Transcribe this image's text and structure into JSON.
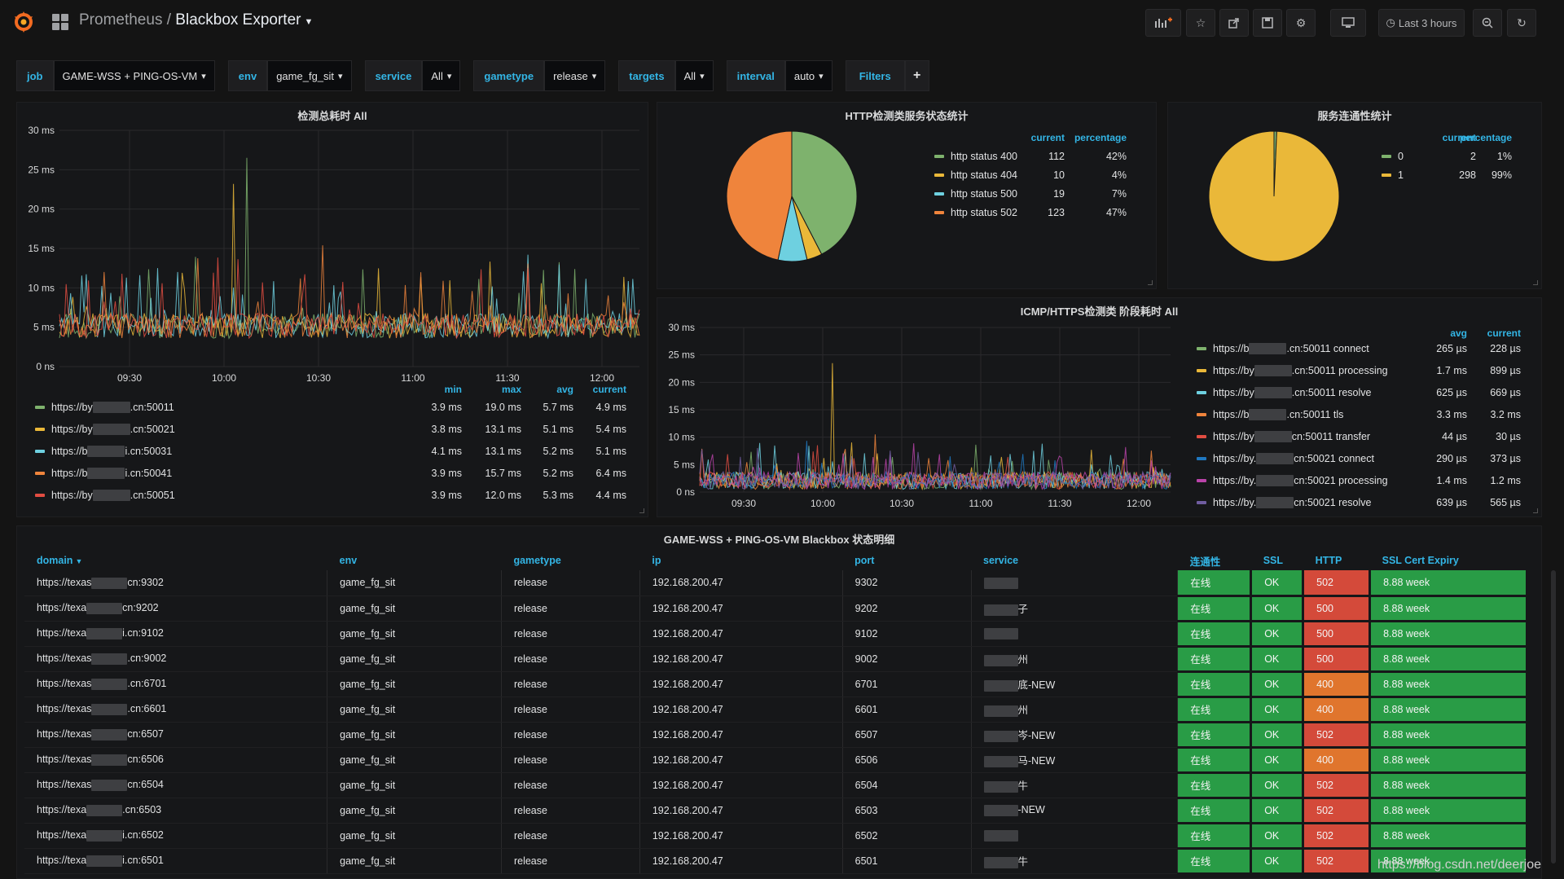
{
  "topbar": {
    "app": "Prometheus",
    "separator": "/",
    "dashboard": "Blackbox Exporter",
    "time_range": "Last 3 hours"
  },
  "variables": [
    {
      "label": "job",
      "value": "GAME-WSS + PING-OS-VM"
    },
    {
      "label": "env",
      "value": "game_fg_sit"
    },
    {
      "label": "service",
      "value": "All"
    },
    {
      "label": "gametype",
      "value": "release"
    },
    {
      "label": "targets",
      "value": "All"
    },
    {
      "label": "interval",
      "value": "auto"
    }
  ],
  "filters_label": "Filters",
  "panel1": {
    "title": "检测总耗时 All",
    "yticks": [
      "30 ms",
      "25 ms",
      "20 ms",
      "15 ms",
      "10 ms",
      "5 ms",
      "0 ns"
    ],
    "xticks": [
      "09:30",
      "10:00",
      "10:30",
      "11:00",
      "11:30",
      "12:00"
    ],
    "headers": [
      "min",
      "max",
      "avg",
      "current"
    ],
    "rows": [
      {
        "pre": "https://by",
        "post": ".cn:50011",
        "color": "#7eb26d",
        "min": "3.9 ms",
        "max": "19.0 ms",
        "avg": "5.7 ms",
        "current": "4.9 ms"
      },
      {
        "pre": "https://by",
        "post": ".cn:50021",
        "color": "#eab839",
        "min": "3.8 ms",
        "max": "13.1 ms",
        "avg": "5.1 ms",
        "current": "5.4 ms"
      },
      {
        "pre": "https://b",
        "post": "i.cn:50031",
        "color": "#6ed0e0",
        "min": "4.1 ms",
        "max": "13.1 ms",
        "avg": "5.2 ms",
        "current": "5.1 ms"
      },
      {
        "pre": "https://b",
        "post": "i.cn:50041",
        "color": "#ef843c",
        "min": "3.9 ms",
        "max": "15.7 ms",
        "avg": "5.2 ms",
        "current": "6.4 ms"
      },
      {
        "pre": "https://by",
        "post": ".cn:50051",
        "color": "#e24d42",
        "min": "3.9 ms",
        "max": "12.0 ms",
        "avg": "5.3 ms",
        "current": "4.4 ms"
      }
    ]
  },
  "panel2": {
    "title": "HTTP检测类服务状态统计",
    "headers": [
      "current",
      "percentage"
    ],
    "rows": [
      {
        "name": "http status 400",
        "color": "#7eb26d",
        "current": "112",
        "percentage": "42%"
      },
      {
        "name": "http status 404",
        "color": "#eab839",
        "current": "10",
        "percentage": "4%"
      },
      {
        "name": "http status 500",
        "color": "#6ed0e0",
        "current": "19",
        "percentage": "7%"
      },
      {
        "name": "http status 502",
        "color": "#ef843c",
        "current": "123",
        "percentage": "47%"
      }
    ]
  },
  "panel3": {
    "title": "服务连通性统计",
    "headers": [
      "current",
      "percentage"
    ],
    "rows": [
      {
        "name": "0",
        "color": "#7eb26d",
        "current": "2",
        "percentage": "1%"
      },
      {
        "name": "1",
        "color": "#eab839",
        "current": "298",
        "percentage": "99%"
      }
    ]
  },
  "panel4": {
    "title": "ICMP/HTTPS检测类 阶段耗时 All",
    "yticks": [
      "30 ms",
      "25 ms",
      "20 ms",
      "15 ms",
      "10 ms",
      "5 ms",
      "0 ns"
    ],
    "xticks": [
      "09:30",
      "10:00",
      "10:30",
      "11:00",
      "11:30",
      "12:00"
    ],
    "headers": [
      "avg",
      "current"
    ],
    "rows": [
      {
        "pre": "https://b",
        "post": ".cn:50011 connect",
        "color": "#7eb26d",
        "avg": "265 µs",
        "current": "228 µs"
      },
      {
        "pre": "https://by",
        "post": ".cn:50011 processing",
        "color": "#eab839",
        "avg": "1.7 ms",
        "current": "899 µs"
      },
      {
        "pre": "https://by",
        "post": ".cn:50011 resolve",
        "color": "#6ed0e0",
        "avg": "625 µs",
        "current": "669 µs"
      },
      {
        "pre": "https://b",
        "post": ".cn:50011 tls",
        "color": "#ef843c",
        "avg": "3.3 ms",
        "current": "3.2 ms"
      },
      {
        "pre": "https://by",
        "post": "cn:50011 transfer",
        "color": "#e24d42",
        "avg": "44 µs",
        "current": "30 µs"
      },
      {
        "pre": "https://by.",
        "post": "cn:50021 connect",
        "color": "#1f78c1",
        "avg": "290 µs",
        "current": "373 µs"
      },
      {
        "pre": "https://by.",
        "post": "cn:50021 processing",
        "color": "#ba43a9",
        "avg": "1.4 ms",
        "current": "1.2 ms"
      },
      {
        "pre": "https://by.",
        "post": "cn:50021 resolve",
        "color": "#705da0",
        "avg": "639 µs",
        "current": "565 µs"
      }
    ]
  },
  "table": {
    "title": "GAME-WSS + PING-OS-VM Blackbox 状态明细",
    "headers": [
      "domain",
      "env",
      "gametype",
      "ip",
      "port",
      "service",
      "连通性",
      "SSL",
      "HTTP",
      "SSL Cert Expiry"
    ],
    "rows": [
      {
        "d1": "https://texas",
        "d2": "cn:9302",
        "env": "game_fg_sit",
        "gametype": "release",
        "ip": "192.168.200.47",
        "port": "9302",
        "svc": "",
        "conn": "在线",
        "ssl": "OK",
        "http": "502",
        "expiry": "8.88 week"
      },
      {
        "d1": "https://texa",
        "d2": "cn:9202",
        "env": "game_fg_sit",
        "gametype": "release",
        "ip": "192.168.200.47",
        "port": "9202",
        "svc": "子",
        "conn": "在线",
        "ssl": "OK",
        "http": "500",
        "expiry": "8.88 week"
      },
      {
        "d1": "https://texa",
        "d2": "i.cn:9102",
        "env": "game_fg_sit",
        "gametype": "release",
        "ip": "192.168.200.47",
        "port": "9102",
        "svc": "",
        "conn": "在线",
        "ssl": "OK",
        "http": "500",
        "expiry": "8.88 week"
      },
      {
        "d1": "https://texas",
        "d2": ".cn:9002",
        "env": "game_fg_sit",
        "gametype": "release",
        "ip": "192.168.200.47",
        "port": "9002",
        "svc": "州",
        "conn": "在线",
        "ssl": "OK",
        "http": "500",
        "expiry": "8.88 week"
      },
      {
        "d1": "https://texas",
        "d2": ".cn:6701",
        "env": "game_fg_sit",
        "gametype": "release",
        "ip": "192.168.200.47",
        "port": "6701",
        "svc": "底-NEW",
        "conn": "在线",
        "ssl": "OK",
        "http": "400",
        "expiry": "8.88 week"
      },
      {
        "d1": "https://texas",
        "d2": ".cn:6601",
        "env": "game_fg_sit",
        "gametype": "release",
        "ip": "192.168.200.47",
        "port": "6601",
        "svc": "州",
        "conn": "在线",
        "ssl": "OK",
        "http": "400",
        "expiry": "8.88 week"
      },
      {
        "d1": "https://texas",
        "d2": "cn:6507",
        "env": "game_fg_sit",
        "gametype": "release",
        "ip": "192.168.200.47",
        "port": "6507",
        "svc": "岑-NEW",
        "conn": "在线",
        "ssl": "OK",
        "http": "502",
        "expiry": "8.88 week"
      },
      {
        "d1": "https://texas",
        "d2": "cn:6506",
        "env": "game_fg_sit",
        "gametype": "release",
        "ip": "192.168.200.47",
        "port": "6506",
        "svc": "马-NEW",
        "conn": "在线",
        "ssl": "OK",
        "http": "400",
        "expiry": "8.88 week"
      },
      {
        "d1": "https://texas",
        "d2": "cn:6504",
        "env": "game_fg_sit",
        "gametype": "release",
        "ip": "192.168.200.47",
        "port": "6504",
        "svc": "牛",
        "conn": "在线",
        "ssl": "OK",
        "http": "502",
        "expiry": "8.88 week"
      },
      {
        "d1": "https://texa",
        "d2": ".cn:6503",
        "env": "game_fg_sit",
        "gametype": "release",
        "ip": "192.168.200.47",
        "port": "6503",
        "svc": "-NEW",
        "conn": "在线",
        "ssl": "OK",
        "http": "502",
        "expiry": "8.88 week"
      },
      {
        "d1": "https://texa",
        "d2": "i.cn:6502",
        "env": "game_fg_sit",
        "gametype": "release",
        "ip": "192.168.200.47",
        "port": "6502",
        "svc": "",
        "conn": "在线",
        "ssl": "OK",
        "http": "502",
        "expiry": "8.88 week"
      },
      {
        "d1": "https://texa",
        "d2": "i.cn:6501",
        "env": "game_fg_sit",
        "gametype": "release",
        "ip": "192.168.200.47",
        "port": "6501",
        "svc": "牛",
        "conn": "在线",
        "ssl": "OK",
        "http": "502",
        "expiry": "8.88 week"
      }
    ]
  },
  "watermark": "https://blog.csdn.net/deerjoe",
  "chart_data": [
    {
      "type": "line",
      "title": "检测总耗时 All",
      "x": [
        "09:30",
        "10:00",
        "10:30",
        "11:00",
        "11:30",
        "12:00"
      ],
      "ylim": [
        0,
        30
      ],
      "series": [
        {
          "name": "https://by…cn:50011",
          "min": 3.9,
          "max": 19.0,
          "avg": 5.7,
          "current": 4.9
        },
        {
          "name": "https://by…cn:50021",
          "min": 3.8,
          "max": 13.1,
          "avg": 5.1,
          "current": 5.4
        },
        {
          "name": "https://b…cn:50031",
          "min": 4.1,
          "max": 13.1,
          "avg": 5.2,
          "current": 5.1
        },
        {
          "name": "https://b…cn:50041",
          "min": 3.9,
          "max": 15.7,
          "avg": 5.2,
          "current": 6.4
        },
        {
          "name": "https://by…cn:50051",
          "min": 3.9,
          "max": 12.0,
          "avg": 5.3,
          "current": 4.4
        }
      ]
    },
    {
      "type": "pie",
      "title": "HTTP检测类服务状态统计",
      "categories": [
        "http status 400",
        "http status 404",
        "http status 500",
        "http status 502"
      ],
      "values": [
        112,
        10,
        19,
        123
      ]
    },
    {
      "type": "pie",
      "title": "服务连通性统计",
      "categories": [
        "0",
        "1"
      ],
      "values": [
        2,
        298
      ]
    },
    {
      "type": "line",
      "title": "ICMP/HTTPS检测类 阶段耗时 All",
      "x": [
        "09:30",
        "10:00",
        "10:30",
        "11:00",
        "11:30",
        "12:00"
      ],
      "ylim": [
        0,
        30
      ]
    }
  ]
}
